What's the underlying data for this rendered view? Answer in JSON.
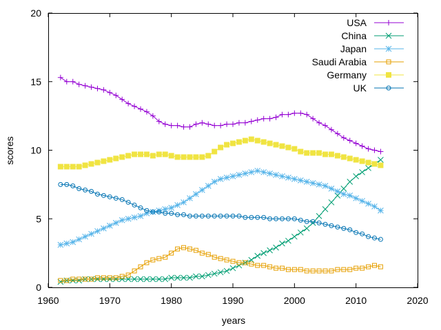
{
  "chart_data": {
    "type": "line",
    "title": "",
    "xlabel": "years",
    "ylabel": "scores",
    "xlim": [
      1960,
      2020
    ],
    "ylim": [
      0,
      20
    ],
    "xticks": [
      1960,
      1970,
      1980,
      1990,
      2000,
      2010,
      2020
    ],
    "yticks": [
      0,
      5,
      10,
      15,
      20
    ],
    "grid": false,
    "legend": "top-right",
    "x": [
      1962,
      1963,
      1964,
      1965,
      1966,
      1967,
      1968,
      1969,
      1970,
      1971,
      1972,
      1973,
      1974,
      1975,
      1976,
      1977,
      1978,
      1979,
      1980,
      1981,
      1982,
      1983,
      1984,
      1985,
      1986,
      1987,
      1988,
      1989,
      1990,
      1991,
      1992,
      1993,
      1994,
      1995,
      1996,
      1997,
      1998,
      1999,
      2000,
      2001,
      2002,
      2003,
      2004,
      2005,
      2006,
      2007,
      2008,
      2009,
      2010,
      2011,
      2012,
      2013,
      2014
    ],
    "series": [
      {
        "name": "USA",
        "color": "#9400d3",
        "marker": "plus",
        "values": [
          15.3,
          15.0,
          15.0,
          14.8,
          14.7,
          14.6,
          14.5,
          14.4,
          14.2,
          14.0,
          13.7,
          13.4,
          13.2,
          13.0,
          12.8,
          12.5,
          12.1,
          11.9,
          11.8,
          11.8,
          11.7,
          11.7,
          11.9,
          12.0,
          11.9,
          11.8,
          11.8,
          11.9,
          11.9,
          12.0,
          12.0,
          12.1,
          12.2,
          12.3,
          12.3,
          12.4,
          12.6,
          12.6,
          12.7,
          12.7,
          12.6,
          12.3,
          12.0,
          11.8,
          11.5,
          11.2,
          10.9,
          10.7,
          10.5,
          10.3,
          10.1,
          10.0,
          9.9
        ]
      },
      {
        "name": "China",
        "color": "#009e73",
        "marker": "x",
        "values": [
          0.4,
          0.5,
          0.5,
          0.5,
          0.6,
          0.6,
          0.6,
          0.6,
          0.6,
          0.6,
          0.6,
          0.6,
          0.6,
          0.6,
          0.6,
          0.6,
          0.6,
          0.6,
          0.7,
          0.7,
          0.7,
          0.7,
          0.8,
          0.8,
          0.9,
          1.0,
          1.1,
          1.2,
          1.4,
          1.6,
          1.8,
          2.0,
          2.3,
          2.5,
          2.7,
          2.9,
          3.2,
          3.4,
          3.7,
          4.0,
          4.3,
          4.7,
          5.2,
          5.7,
          6.2,
          6.7,
          7.2,
          7.7,
          8.1,
          8.4,
          8.7,
          9.0,
          9.3
        ]
      },
      {
        "name": "Japan",
        "color": "#56b4e9",
        "marker": "star",
        "values": [
          3.1,
          3.2,
          3.3,
          3.5,
          3.7,
          3.9,
          4.1,
          4.3,
          4.5,
          4.7,
          4.9,
          5.0,
          5.1,
          5.2,
          5.4,
          5.5,
          5.6,
          5.7,
          5.8,
          6.0,
          6.2,
          6.5,
          6.8,
          7.1,
          7.4,
          7.7,
          7.9,
          8.0,
          8.1,
          8.2,
          8.3,
          8.4,
          8.5,
          8.4,
          8.3,
          8.2,
          8.1,
          8.0,
          7.9,
          7.8,
          7.7,
          7.6,
          7.5,
          7.4,
          7.2,
          7.0,
          6.8,
          6.7,
          6.5,
          6.3,
          6.1,
          5.9,
          5.6
        ]
      },
      {
        "name": "Saudi Arabia",
        "color": "#e69f00",
        "marker": "square-open",
        "values": [
          0.5,
          0.5,
          0.6,
          0.6,
          0.6,
          0.6,
          0.7,
          0.7,
          0.7,
          0.7,
          0.8,
          0.9,
          1.2,
          1.5,
          1.8,
          2.0,
          2.1,
          2.2,
          2.5,
          2.8,
          2.9,
          2.8,
          2.7,
          2.5,
          2.4,
          2.2,
          2.1,
          2.0,
          1.9,
          1.8,
          1.8,
          1.7,
          1.6,
          1.6,
          1.5,
          1.4,
          1.4,
          1.3,
          1.3,
          1.3,
          1.2,
          1.2,
          1.2,
          1.2,
          1.2,
          1.3,
          1.3,
          1.3,
          1.4,
          1.4,
          1.5,
          1.6,
          1.5
        ]
      },
      {
        "name": "Germany",
        "color": "#f0e442",
        "marker": "square-filled",
        "values": [
          8.8,
          8.8,
          8.8,
          8.8,
          8.9,
          9.0,
          9.1,
          9.2,
          9.3,
          9.4,
          9.5,
          9.6,
          9.7,
          9.7,
          9.7,
          9.6,
          9.7,
          9.7,
          9.6,
          9.5,
          9.5,
          9.5,
          9.5,
          9.5,
          9.6,
          9.9,
          10.2,
          10.4,
          10.5,
          10.6,
          10.7,
          10.8,
          10.7,
          10.6,
          10.5,
          10.4,
          10.3,
          10.2,
          10.1,
          9.9,
          9.8,
          9.8,
          9.8,
          9.7,
          9.7,
          9.6,
          9.5,
          9.4,
          9.3,
          9.2,
          9.1,
          9.0,
          8.9
        ]
      },
      {
        "name": "UK",
        "color": "#0072b2",
        "marker": "circle-open",
        "values": [
          7.5,
          7.5,
          7.4,
          7.2,
          7.1,
          7.0,
          6.8,
          6.7,
          6.6,
          6.5,
          6.4,
          6.2,
          6.0,
          5.8,
          5.6,
          5.5,
          5.5,
          5.4,
          5.4,
          5.3,
          5.3,
          5.2,
          5.2,
          5.2,
          5.2,
          5.2,
          5.2,
          5.2,
          5.2,
          5.2,
          5.1,
          5.1,
          5.1,
          5.1,
          5.0,
          5.0,
          5.0,
          5.0,
          5.0,
          4.9,
          4.8,
          4.8,
          4.7,
          4.6,
          4.5,
          4.4,
          4.3,
          4.2,
          4.0,
          3.9,
          3.7,
          3.6,
          3.5
        ]
      }
    ]
  }
}
